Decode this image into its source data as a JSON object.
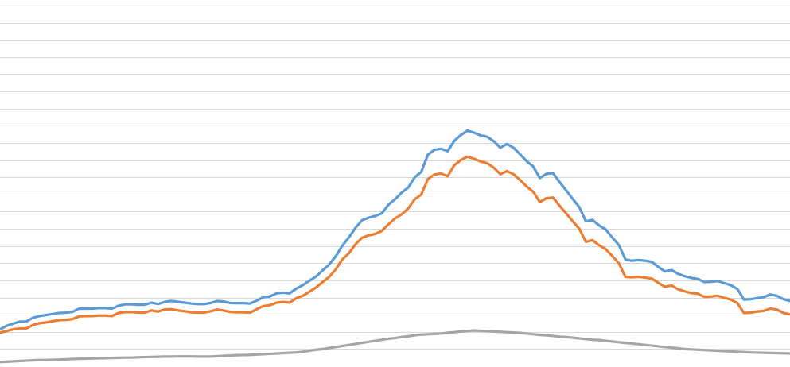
{
  "chart_data": {
    "type": "line",
    "title": "",
    "xlabel": "",
    "ylabel": "",
    "grid": true,
    "legend": "none",
    "xlim": [
      0,
      120
    ],
    "ylim": [
      0,
      21
    ],
    "gridline_count": 21,
    "x": [
      0,
      1,
      2,
      3,
      4,
      5,
      6,
      7,
      8,
      9,
      10,
      11,
      12,
      13,
      14,
      15,
      16,
      17,
      18,
      19,
      20,
      21,
      22,
      23,
      24,
      25,
      26,
      27,
      28,
      29,
      30,
      31,
      32,
      33,
      34,
      35,
      36,
      37,
      38,
      39,
      40,
      41,
      42,
      43,
      44,
      45,
      46,
      47,
      48,
      49,
      50,
      51,
      52,
      53,
      54,
      55,
      56,
      57,
      58,
      59,
      60,
      61,
      62,
      63,
      64,
      65,
      66,
      67,
      68,
      69,
      70,
      71,
      72,
      73,
      74,
      75,
      76,
      77,
      78,
      79,
      80,
      81,
      82,
      83,
      84,
      85,
      86,
      87,
      88,
      89,
      90,
      91,
      92,
      93,
      94,
      95,
      96,
      97,
      98,
      99,
      100,
      101,
      102,
      103,
      104,
      105,
      106,
      107,
      108,
      109,
      110,
      111,
      112,
      113,
      114,
      115,
      116,
      117,
      118,
      119,
      120
    ],
    "series": [
      {
        "color": "#5b9bd5",
        "values": [
          2.15,
          2.35,
          2.48,
          2.6,
          2.6,
          2.82,
          2.92,
          2.98,
          3.04,
          3.1,
          3.12,
          3.16,
          3.35,
          3.35,
          3.35,
          3.38,
          3.38,
          3.35,
          3.52,
          3.6,
          3.6,
          3.58,
          3.58,
          3.7,
          3.62,
          3.74,
          3.8,
          3.75,
          3.7,
          3.65,
          3.62,
          3.62,
          3.68,
          3.8,
          3.76,
          3.68,
          3.67,
          3.67,
          3.65,
          3.82,
          4.02,
          4.06,
          4.24,
          4.28,
          4.24,
          4.52,
          4.72,
          4.98,
          5.22,
          5.58,
          5.92,
          6.4,
          7.02,
          7.5,
          8.06,
          8.5,
          8.65,
          8.75,
          8.9,
          9.4,
          9.72,
          10.1,
          10.4,
          11.0,
          11.32,
          12.32,
          12.6,
          12.66,
          12.52,
          13.12,
          13.46,
          13.72,
          13.6,
          13.44,
          13.36,
          13.1,
          12.72,
          12.94,
          12.72,
          12.34,
          11.94,
          11.62,
          10.96,
          11.2,
          11.24,
          10.72,
          10.24,
          9.74,
          9.26,
          8.44,
          8.52,
          8.2,
          7.96,
          7.5,
          7.06,
          6.22,
          6.14,
          6.18,
          6.14,
          6.08,
          5.78,
          5.52,
          5.6,
          5.38,
          5.24,
          5.14,
          5.08,
          4.9,
          4.92,
          4.96,
          4.84,
          4.72,
          4.5,
          3.88,
          3.9,
          3.96,
          4.02,
          4.18,
          4.1,
          3.9,
          3.8
        ]
      },
      {
        "color": "#ed7d31",
        "values": [
          1.95,
          2.05,
          2.15,
          2.2,
          2.2,
          2.4,
          2.5,
          2.55,
          2.62,
          2.68,
          2.7,
          2.74,
          2.9,
          2.92,
          2.92,
          2.95,
          2.95,
          2.92,
          3.1,
          3.15,
          3.15,
          3.12,
          3.12,
          3.25,
          3.18,
          3.3,
          3.32,
          3.25,
          3.2,
          3.14,
          3.12,
          3.12,
          3.2,
          3.3,
          3.24,
          3.16,
          3.14,
          3.14,
          3.12,
          3.32,
          3.5,
          3.55,
          3.7,
          3.74,
          3.7,
          3.96,
          4.1,
          4.34,
          4.58,
          4.9,
          5.2,
          5.64,
          6.22,
          6.58,
          7.1,
          7.48,
          7.62,
          7.7,
          7.88,
          8.26,
          8.6,
          8.84,
          9.18,
          9.72,
          10.0,
          10.9,
          11.16,
          11.22,
          11.06,
          11.7,
          12.0,
          12.2,
          12.08,
          11.92,
          11.82,
          11.56,
          11.18,
          11.36,
          11.18,
          10.84,
          10.46,
          10.16,
          9.56,
          9.78,
          9.82,
          9.34,
          8.9,
          8.44,
          8.0,
          7.24,
          7.34,
          7.04,
          6.82,
          6.42,
          6.0,
          5.2,
          5.18,
          5.2,
          5.16,
          5.1,
          4.86,
          4.62,
          4.7,
          4.48,
          4.36,
          4.26,
          4.22,
          4.04,
          4.06,
          4.1,
          3.98,
          3.88,
          3.68,
          3.1,
          3.12,
          3.18,
          3.22,
          3.36,
          3.3,
          3.1,
          3.02
        ]
      },
      {
        "color": "#a5a5a5",
        "values": [
          0.24,
          0.26,
          0.28,
          0.3,
          0.32,
          0.34,
          0.36,
          0.36,
          0.37,
          0.38,
          0.4,
          0.42,
          0.43,
          0.44,
          0.45,
          0.46,
          0.47,
          0.48,
          0.49,
          0.5,
          0.5,
          0.52,
          0.53,
          0.54,
          0.55,
          0.56,
          0.56,
          0.57,
          0.57,
          0.57,
          0.56,
          0.56,
          0.56,
          0.58,
          0.6,
          0.62,
          0.64,
          0.65,
          0.66,
          0.68,
          0.7,
          0.72,
          0.74,
          0.76,
          0.78,
          0.8,
          0.84,
          0.9,
          0.96,
          1.0,
          1.06,
          1.12,
          1.18,
          1.24,
          1.3,
          1.36,
          1.42,
          1.48,
          1.54,
          1.6,
          1.64,
          1.7,
          1.74,
          1.8,
          1.84,
          1.86,
          1.88,
          1.9,
          1.95,
          1.98,
          2.02,
          2.05,
          2.08,
          2.06,
          2.04,
          2.02,
          2.0,
          1.98,
          1.96,
          1.94,
          1.9,
          1.86,
          1.82,
          1.8,
          1.76,
          1.72,
          1.7,
          1.66,
          1.62,
          1.58,
          1.54,
          1.52,
          1.48,
          1.44,
          1.4,
          1.36,
          1.32,
          1.28,
          1.24,
          1.2,
          1.16,
          1.12,
          1.08,
          1.04,
          1.0,
          0.98,
          0.96,
          0.94,
          0.92,
          0.9,
          0.88,
          0.86,
          0.84,
          0.82,
          0.8,
          0.79,
          0.78,
          0.77,
          0.76,
          0.75,
          0.74
        ]
      }
    ]
  }
}
